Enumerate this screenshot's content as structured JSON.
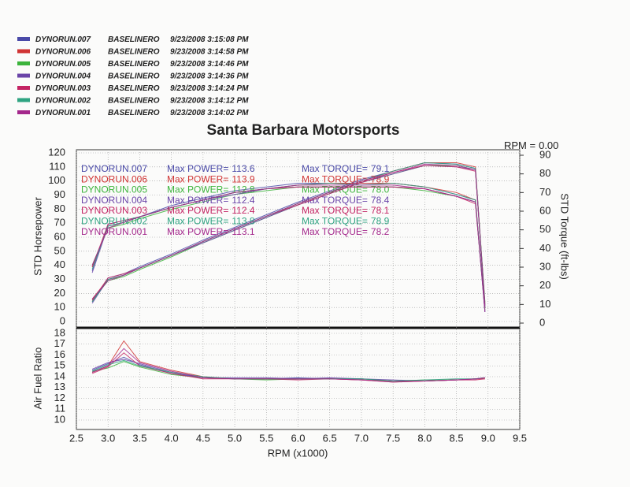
{
  "chart_data": [
    {
      "type": "line",
      "title": "Santa Barbara Motorsports",
      "readout": {
        "label": "RPM =",
        "value": {
          "value": 0,
          "label": "0.00"
        }
      },
      "ylabel": "STD Horsepower",
      "y2label": "STD Torque (ft-lbs)",
      "power_label": "Max POWER=",
      "torque_label": "Max TORQUE=",
      "x": [
        2.75,
        3.0,
        3.25,
        3.5,
        4.0,
        4.5,
        5.0,
        5.5,
        6.0,
        6.5,
        7.0,
        7.5,
        8.0,
        8.5,
        8.8,
        8.95
      ],
      "xlim": [
        2.5,
        9.5
      ],
      "ylim": [
        0,
        120
      ],
      "yticks": [
        0,
        10,
        20,
        30,
        40,
        50,
        60,
        70,
        80,
        90,
        100,
        110,
        120
      ],
      "y2lim": [
        0,
        90
      ],
      "y2ticks": [
        0,
        10,
        20,
        30,
        40,
        50,
        60,
        70,
        80,
        90
      ],
      "grid": true,
      "series": [
        {
          "name": "DYNORUN.007",
          "description": "BASELINERO",
          "timestamp": "9/23/2008  3:15:08 PM",
          "color": "#4a4aa8",
          "max_power": 113.6,
          "max_torque": 79.1,
          "values": [
            14,
            31,
            34,
            39,
            48,
            58,
            67,
            76,
            85,
            93,
            101,
            107,
            113,
            112,
            109,
            10
          ],
          "torque": [
            28,
            53,
            55,
            57,
            63,
            67,
            71,
            73,
            75,
            75,
            75,
            75,
            73,
            69,
            66,
            6
          ]
        },
        {
          "name": "DYNORUN.006",
          "description": "BASELINERO",
          "timestamp": "9/23/2008  3:14:58 PM",
          "color": "#d03434",
          "max_power": 113.9,
          "max_torque": 78.9,
          "values": [
            16,
            30,
            33,
            38,
            47,
            57,
            66,
            75,
            84,
            92,
            100,
            107,
            113,
            113,
            110,
            12
          ],
          "torque": [
            30,
            52,
            54,
            57,
            62,
            66,
            70,
            72,
            74,
            75,
            75,
            75,
            73,
            70,
            66,
            7
          ]
        },
        {
          "name": "DYNORUN.005",
          "description": "BASELINERO",
          "timestamp": "9/23/2008  3:14:46 PM",
          "color": "#3cb43c",
          "max_power": 112.8,
          "max_torque": {
            "value": 78,
            "label": "78.0"
          },
          "values": [
            15,
            29,
            32,
            37,
            46,
            56,
            65,
            74,
            83,
            91,
            99,
            105,
            111,
            111,
            108,
            14
          ],
          "torque": [
            31,
            51,
            53,
            56,
            61,
            65,
            69,
            71,
            73,
            73,
            73,
            73,
            71,
            68,
            65,
            8
          ]
        },
        {
          "name": "DYNORUN.004",
          "description": "BASELINERO",
          "timestamp": "9/23/2008  3:14:36 PM",
          "color": "#6a44a8",
          "max_power": 112.4,
          "max_torque": 78.4,
          "values": [
            13,
            30,
            33,
            38,
            47,
            56,
            65,
            74,
            83,
            91,
            99,
            105,
            111,
            110,
            108,
            11
          ],
          "torque": [
            27,
            52,
            54,
            57,
            62,
            66,
            69,
            72,
            73,
            73,
            73,
            73,
            72,
            68,
            65,
            6
          ]
        },
        {
          "name": "DYNORUN.003",
          "description": "BASELINERO",
          "timestamp": "9/23/2008  3:14:24 PM",
          "color": "#c42464",
          "max_power": 112.4,
          "max_torque": 78.1,
          "values": [
            15,
            31,
            34,
            38,
            47,
            57,
            66,
            75,
            83,
            91,
            99,
            106,
            111,
            110,
            107,
            13
          ],
          "torque": [
            30,
            53,
            55,
            57,
            62,
            66,
            70,
            72,
            73,
            73,
            73,
            73,
            72,
            68,
            64,
            8
          ]
        },
        {
          "name": "DYNORUN.002",
          "description": "BASELINERO",
          "timestamp": "9/23/2008  3:14:12 PM",
          "color": "#2fa482",
          "max_power": 113.8,
          "max_torque": 78.9,
          "values": [
            14,
            30,
            33,
            38,
            47,
            57,
            66,
            75,
            84,
            92,
            100,
            107,
            113,
            112,
            109,
            12
          ],
          "torque": [
            29,
            52,
            54,
            57,
            62,
            66,
            70,
            72,
            74,
            75,
            74,
            75,
            73,
            69,
            66,
            7
          ]
        },
        {
          "name": "DYNORUN.001",
          "description": "BASELINERO",
          "timestamp": "9/23/2008  3:14:02 PM",
          "color": "#a4288c",
          "max_power": 113.1,
          "max_torque": 78.2,
          "values": [
            16,
            29,
            33,
            38,
            47,
            57,
            66,
            75,
            84,
            92,
            100,
            106,
            112,
            111,
            108,
            11
          ],
          "torque": [
            31,
            51,
            54,
            57,
            62,
            66,
            70,
            72,
            74,
            74,
            74,
            74,
            72,
            68,
            65,
            6
          ]
        }
      ]
    },
    {
      "type": "line",
      "ylabel": "Air Fuel Ratio",
      "xlabel": "RPM (x1000)",
      "x": [
        2.75,
        3.0,
        3.25,
        3.5,
        4.0,
        4.5,
        5.0,
        5.5,
        6.0,
        6.5,
        7.0,
        7.5,
        8.0,
        8.5,
        8.8,
        8.95
      ],
      "xlim": [
        2.5,
        9.5
      ],
      "xticks": [
        2.5,
        {
          "value": 3,
          "label": "3.0"
        },
        3.5,
        {
          "value": 4,
          "label": "4.0"
        },
        4.5,
        {
          "value": 5,
          "label": "5.0"
        },
        5.5,
        {
          "value": 6,
          "label": "6.0"
        },
        6.5,
        {
          "value": 7,
          "label": "7.0"
        },
        7.5,
        {
          "value": 8,
          "label": "8.0"
        },
        8.5,
        {
          "value": 9,
          "label": "9.0"
        },
        9.5
      ],
      "ylim": [
        10,
        18
      ],
      "yticks": [
        10,
        11,
        12,
        13,
        14,
        15,
        16,
        17,
        18
      ],
      "grid": true,
      "series": [
        {
          "values": [
            14.6,
            15.2,
            15.8,
            15.1,
            14.3,
            13.9,
            13.8,
            13.8,
            13.9,
            13.8,
            13.8,
            13.6,
            13.6,
            13.7,
            13.8,
            13.9
          ]
        },
        {
          "values": [
            14.4,
            15.0,
            17.3,
            15.4,
            14.6,
            14.0,
            13.8,
            13.8,
            13.8,
            13.8,
            13.7,
            13.5,
            13.6,
            13.7,
            13.8,
            13.8
          ]
        },
        {
          "values": [
            14.5,
            14.8,
            15.4,
            14.9,
            14.2,
            13.9,
            13.8,
            13.7,
            13.8,
            13.8,
            13.8,
            13.6,
            13.7,
            13.7,
            13.8,
            13.9
          ]
        },
        {
          "values": [
            14.7,
            15.3,
            15.6,
            15.2,
            14.4,
            13.9,
            13.9,
            13.9,
            13.8,
            13.9,
            13.8,
            13.7,
            13.6,
            13.7,
            13.8,
            13.9
          ]
        },
        {
          "values": [
            14.3,
            14.9,
            16.2,
            15.0,
            14.3,
            13.8,
            13.8,
            13.8,
            13.7,
            13.8,
            13.7,
            13.6,
            13.6,
            13.7,
            13.7,
            13.8
          ]
        },
        {
          "values": [
            14.5,
            15.1,
            15.5,
            15.0,
            14.4,
            14.0,
            13.8,
            13.8,
            13.8,
            13.8,
            13.8,
            13.6,
            13.7,
            13.8,
            13.8,
            13.9
          ]
        },
        {
          "values": [
            14.4,
            15.0,
            16.6,
            15.3,
            14.5,
            13.9,
            13.8,
            13.8,
            13.8,
            13.8,
            13.7,
            13.5,
            13.6,
            13.7,
            13.8,
            13.9
          ]
        }
      ]
    }
  ]
}
